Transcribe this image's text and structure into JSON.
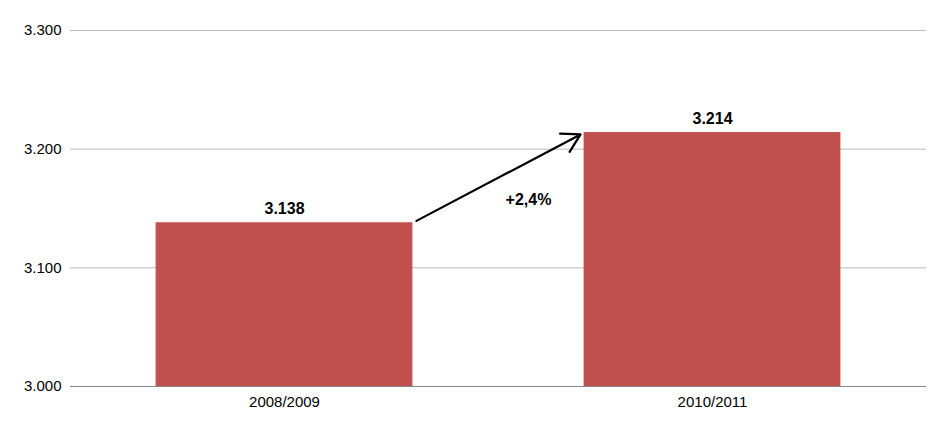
{
  "chart_data": {
    "type": "bar",
    "categories": [
      "2008/2009",
      "2010/2011"
    ],
    "values": [
      3138,
      3214
    ],
    "value_labels": [
      "3.138",
      "3.214"
    ],
    "data_labels": true,
    "color": "#C0504D",
    "ylim": [
      3000,
      3300
    ],
    "yticks": [
      {
        "value": 3000,
        "label": "3.000"
      },
      {
        "value": 3100,
        "label": "3.100"
      },
      {
        "value": 3200,
        "label": "3.200"
      },
      {
        "value": 3300,
        "label": "3.300"
      }
    ],
    "grid": true,
    "annotation": "+2,4%"
  }
}
